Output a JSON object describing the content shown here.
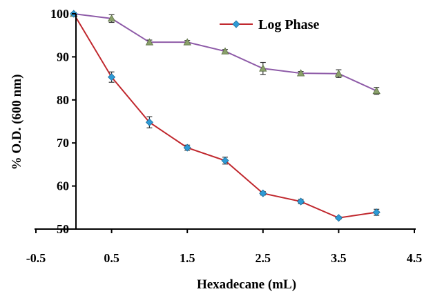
{
  "chart_data": {
    "type": "line",
    "xlabel": "Hexadecane (mL)",
    "ylabel": "% O.D. (600 nm)",
    "xlim": [
      -0.5,
      4.5
    ],
    "ylim": [
      50,
      100
    ],
    "x_ticks": [
      "-0.5",
      "0.5",
      "1.5",
      "2.5",
      "3.5",
      "4.5"
    ],
    "y_ticks": [
      "50",
      "60",
      "70",
      "80",
      "90",
      "100"
    ],
    "grid": false,
    "legend_position": "top-right",
    "series": [
      {
        "name": "Log Phase",
        "color": "#C0272D",
        "marker": "diamond",
        "marker_color": "#2E9BD6",
        "x": [
          0,
          0.5,
          1,
          1.5,
          2,
          2.5,
          3,
          3.5,
          4
        ],
        "y": [
          100,
          85.3,
          74.8,
          68.9,
          65.9,
          58.3,
          56.4,
          52.6,
          53.9
        ],
        "error": [
          0.3,
          1.2,
          1.3,
          0.6,
          0.8,
          0.4,
          0.5,
          0.3,
          0.7
        ]
      },
      {
        "color": "#8E5BA8",
        "marker": "triangle",
        "marker_color": "#8AA06A",
        "x": [
          0,
          0.5,
          1,
          1.5,
          2,
          2.5,
          3,
          3.5,
          4
        ],
        "y": [
          100,
          98.9,
          93.4,
          93.4,
          91.3,
          87.3,
          86.2,
          86.1,
          82.1
        ],
        "error": [
          0.3,
          0.9,
          0.5,
          0.4,
          0.4,
          1.4,
          0.4,
          0.9,
          0.8
        ]
      }
    ]
  }
}
